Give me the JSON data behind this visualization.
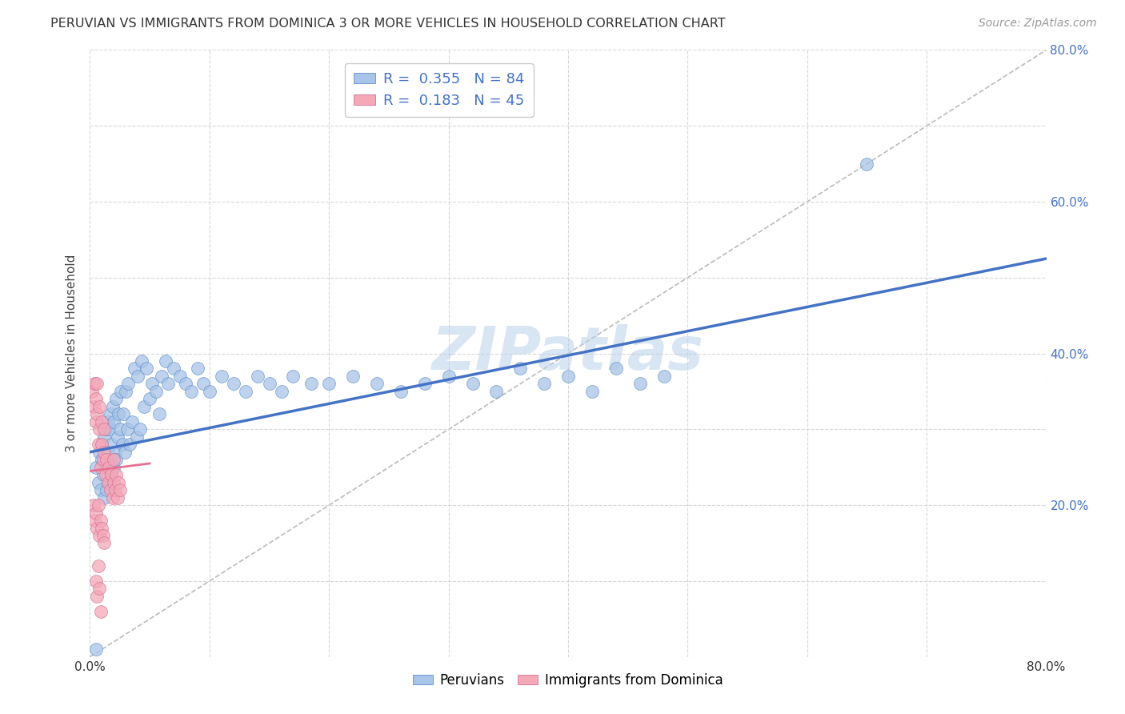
{
  "title": "PERUVIAN VS IMMIGRANTS FROM DOMINICA 3 OR MORE VEHICLES IN HOUSEHOLD CORRELATION CHART",
  "source": "Source: ZipAtlas.com",
  "ylabel": "3 or more Vehicles in Household",
  "xlim": [
    0.0,
    0.8
  ],
  "ylim": [
    0.0,
    0.8
  ],
  "xticks": [
    0.0,
    0.1,
    0.2,
    0.3,
    0.4,
    0.5,
    0.6,
    0.7,
    0.8
  ],
  "yticks": [
    0.0,
    0.1,
    0.2,
    0.3,
    0.4,
    0.5,
    0.6,
    0.7,
    0.8
  ],
  "legend_R1": "0.355",
  "legend_N1": "84",
  "legend_R2": "0.183",
  "legend_N2": "45",
  "peruvian_color": "#a8c4e8",
  "dominica_color": "#f4a8b8",
  "background_color": "#ffffff",
  "grid_color": "#d8d8d8",
  "blue_line_color": "#4472c4",
  "pink_line_color": "#e87090",
  "diag_line_color": "#bbbbbb",
  "watermark": "ZIPatlas",
  "peru_line_x0": 0.0,
  "peru_line_x1": 0.8,
  "peru_line_y0": 0.27,
  "peru_line_y1": 0.525,
  "domin_line_x0": 0.0,
  "domin_line_x1": 0.05,
  "domin_line_y0": 0.245,
  "domin_line_y1": 0.255,
  "peru_scatter_x": [
    0.005,
    0.007,
    0.008,
    0.009,
    0.01,
    0.01,
    0.011,
    0.012,
    0.012,
    0.013,
    0.013,
    0.014,
    0.015,
    0.015,
    0.016,
    0.016,
    0.017,
    0.017,
    0.018,
    0.018,
    0.019,
    0.02,
    0.02,
    0.021,
    0.022,
    0.022,
    0.023,
    0.024,
    0.025,
    0.026,
    0.027,
    0.028,
    0.029,
    0.03,
    0.031,
    0.032,
    0.033,
    0.035,
    0.037,
    0.039,
    0.04,
    0.042,
    0.043,
    0.045,
    0.047,
    0.05,
    0.052,
    0.055,
    0.058,
    0.06,
    0.063,
    0.065,
    0.07,
    0.075,
    0.08,
    0.085,
    0.09,
    0.095,
    0.1,
    0.11,
    0.12,
    0.13,
    0.14,
    0.15,
    0.16,
    0.17,
    0.185,
    0.2,
    0.22,
    0.24,
    0.26,
    0.28,
    0.3,
    0.32,
    0.34,
    0.36,
    0.38,
    0.4,
    0.42,
    0.44,
    0.46,
    0.48,
    0.65,
    0.005
  ],
  "peru_scatter_y": [
    0.25,
    0.23,
    0.27,
    0.22,
    0.26,
    0.28,
    0.24,
    0.29,
    0.21,
    0.3,
    0.25,
    0.22,
    0.31,
    0.27,
    0.23,
    0.3,
    0.26,
    0.32,
    0.24,
    0.28,
    0.33,
    0.25,
    0.31,
    0.27,
    0.34,
    0.26,
    0.29,
    0.32,
    0.3,
    0.35,
    0.28,
    0.32,
    0.27,
    0.35,
    0.3,
    0.36,
    0.28,
    0.31,
    0.38,
    0.29,
    0.37,
    0.3,
    0.39,
    0.33,
    0.38,
    0.34,
    0.36,
    0.35,
    0.32,
    0.37,
    0.39,
    0.36,
    0.38,
    0.37,
    0.36,
    0.35,
    0.38,
    0.36,
    0.35,
    0.37,
    0.36,
    0.35,
    0.37,
    0.36,
    0.35,
    0.37,
    0.36,
    0.36,
    0.37,
    0.36,
    0.35,
    0.36,
    0.37,
    0.36,
    0.35,
    0.38,
    0.36,
    0.37,
    0.35,
    0.38,
    0.36,
    0.37,
    0.65,
    0.01
  ],
  "domin_scatter_x": [
    0.002,
    0.003,
    0.004,
    0.005,
    0.005,
    0.006,
    0.006,
    0.007,
    0.008,
    0.008,
    0.009,
    0.01,
    0.01,
    0.011,
    0.012,
    0.012,
    0.013,
    0.014,
    0.015,
    0.016,
    0.017,
    0.018,
    0.019,
    0.02,
    0.02,
    0.021,
    0.022,
    0.023,
    0.024,
    0.025,
    0.003,
    0.004,
    0.005,
    0.006,
    0.007,
    0.008,
    0.009,
    0.01,
    0.011,
    0.012,
    0.005,
    0.006,
    0.007,
    0.008,
    0.009
  ],
  "domin_scatter_y": [
    0.35,
    0.33,
    0.36,
    0.31,
    0.34,
    0.32,
    0.36,
    0.28,
    0.3,
    0.33,
    0.25,
    0.28,
    0.31,
    0.26,
    0.27,
    0.3,
    0.24,
    0.26,
    0.23,
    0.25,
    0.22,
    0.24,
    0.21,
    0.23,
    0.26,
    0.22,
    0.24,
    0.21,
    0.23,
    0.22,
    0.2,
    0.18,
    0.19,
    0.17,
    0.2,
    0.16,
    0.18,
    0.17,
    0.16,
    0.15,
    0.1,
    0.08,
    0.12,
    0.09,
    0.06
  ]
}
